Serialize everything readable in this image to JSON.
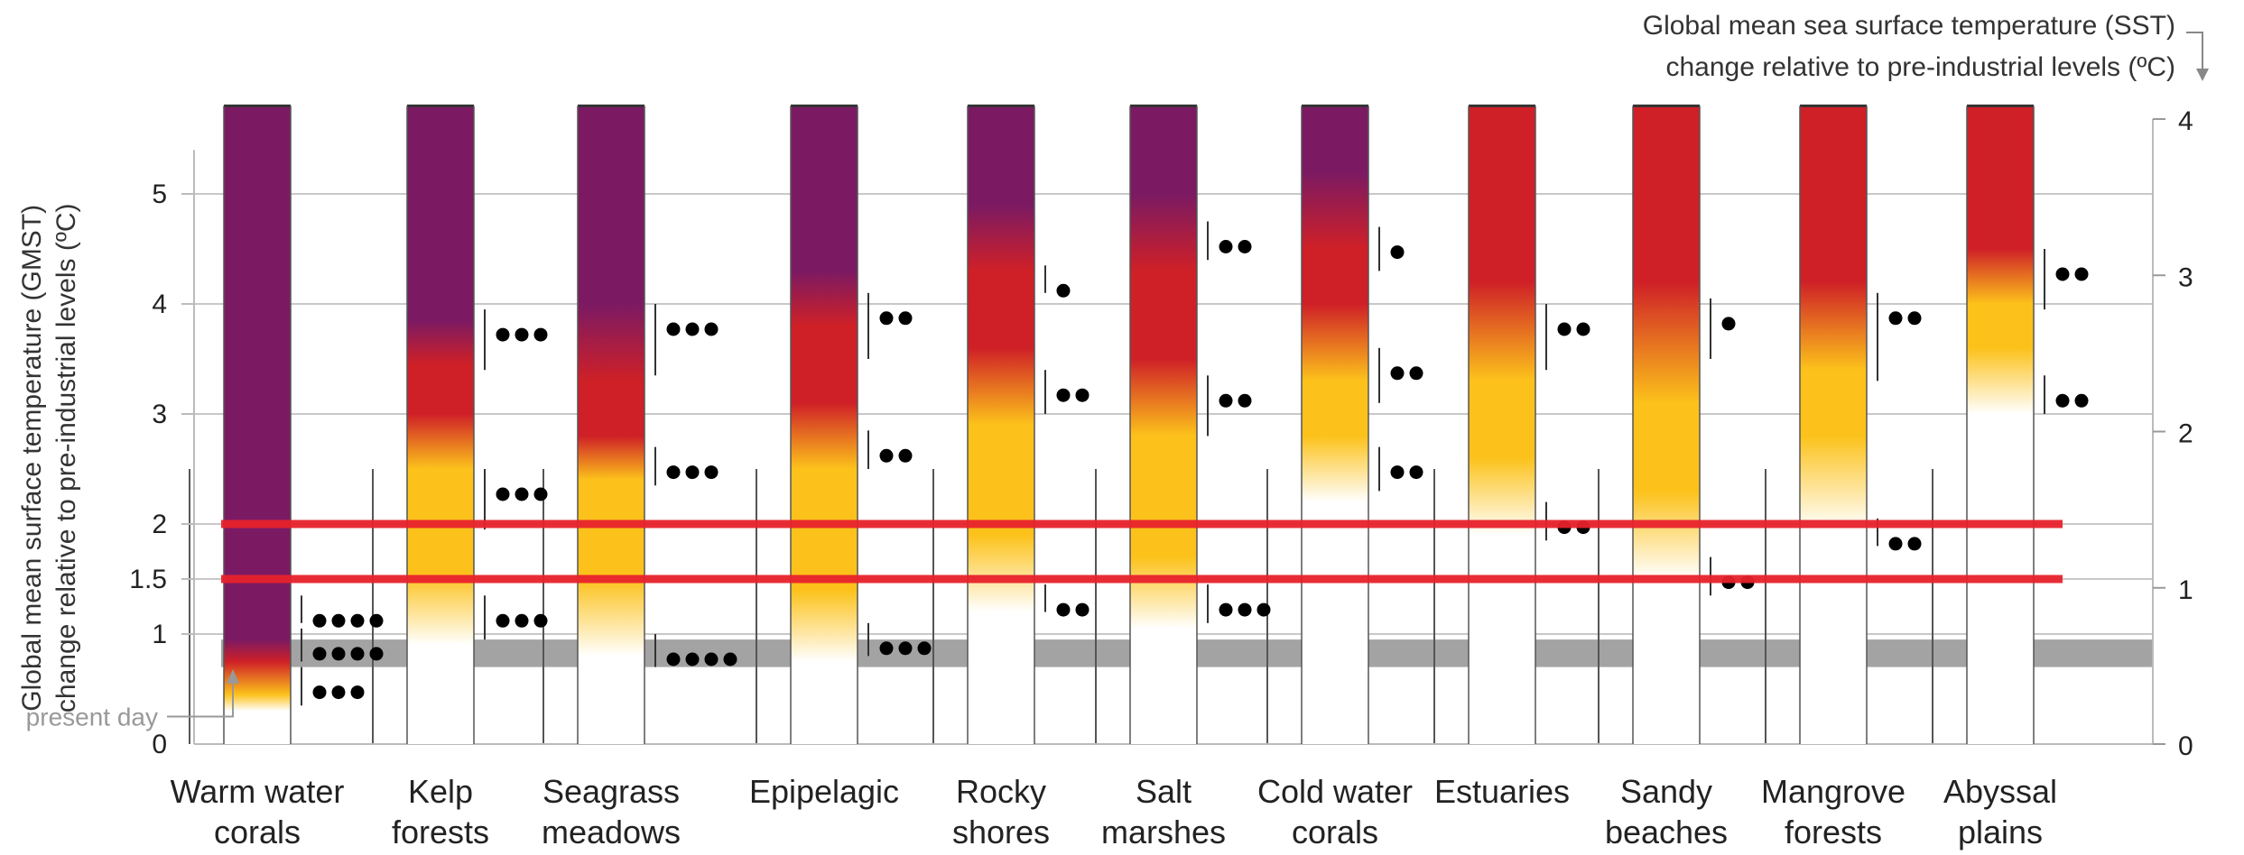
{
  "chart_data": {
    "type": "bar",
    "title": "",
    "categories": [
      [
        "Warm water",
        "corals"
      ],
      [
        "Kelp",
        "forests"
      ],
      [
        "Seagrass",
        "meadows"
      ],
      [
        "Epipelagic"
      ],
      [
        "Rocky",
        "shores"
      ],
      [
        "Salt",
        "marshes"
      ],
      [
        "Cold water",
        "corals"
      ],
      [
        "Estuaries"
      ],
      [
        "Sandy",
        "beaches"
      ],
      [
        "Mangrove",
        "forests"
      ],
      [
        "Abyssal",
        "plains"
      ]
    ],
    "ylabel_left": [
      "Global mean surface temperature (GMST)",
      "change relative to pre-industrial levels (ºC)"
    ],
    "ylabel_right": [
      "Global mean sea surface temperature (SST)",
      "change relative to pre-industrial levels (ºC)"
    ],
    "yticks_left": [
      0,
      1,
      1.5,
      2,
      3,
      4,
      5
    ],
    "yticks_right": [
      0,
      1,
      2,
      3,
      4
    ],
    "ylim_left": [
      0,
      5.8
    ],
    "ylim_right": [
      0,
      4
    ],
    "present_day_label": "present day",
    "present_day_band": [
      0.7,
      0.95
    ],
    "reference_lines_gmst": [
      1.5,
      2
    ],
    "risk_colors": {
      "undetectable": "#ffffff",
      "moderate": "#fcc21b",
      "high": "#cf2027",
      "very_high": "#7b1a63"
    },
    "bars": [
      {
        "gradient": [
          [
            0.3,
            "#ffffff"
          ],
          [
            0.45,
            "#fcc21b"
          ],
          [
            0.75,
            "#cf2027"
          ],
          [
            0.95,
            "#7b1a63"
          ],
          [
            5.8,
            "#7b1a63"
          ]
        ],
        "confidence": [
          {
            "from": 0.35,
            "to": 0.7,
            "dots": 3
          },
          {
            "from": 0.75,
            "to": 1.05,
            "dots": 4
          },
          {
            "from": 1.1,
            "to": 1.35,
            "dots": 4
          }
        ]
      },
      {
        "gradient": [
          [
            0.9,
            "#ffffff"
          ],
          [
            1.55,
            "#fcc21b"
          ],
          [
            2.5,
            "#fcc21b"
          ],
          [
            3.0,
            "#cf2027"
          ],
          [
            3.45,
            "#cf2027"
          ],
          [
            3.85,
            "#7b1a63"
          ],
          [
            5.8,
            "#7b1a63"
          ]
        ],
        "confidence": [
          {
            "from": 0.95,
            "to": 1.35,
            "dots": 3
          },
          {
            "from": 1.95,
            "to": 2.5,
            "dots": 3
          },
          {
            "from": 3.4,
            "to": 3.95,
            "dots": 3
          }
        ]
      },
      {
        "gradient": [
          [
            0.8,
            "#ffffff"
          ],
          [
            1.5,
            "#fcc21b"
          ],
          [
            2.4,
            "#fcc21b"
          ],
          [
            2.8,
            "#cf2027"
          ],
          [
            3.3,
            "#cf2027"
          ],
          [
            4.0,
            "#7b1a63"
          ],
          [
            5.8,
            "#7b1a63"
          ]
        ],
        "confidence": [
          {
            "from": 0.7,
            "to": 1.0,
            "dots": 4
          },
          {
            "from": 2.35,
            "to": 2.7,
            "dots": 3
          },
          {
            "from": 3.35,
            "to": 4.0,
            "dots": 3
          }
        ]
      },
      {
        "gradient": [
          [
            0.75,
            "#ffffff"
          ],
          [
            1.4,
            "#fcc21b"
          ],
          [
            2.5,
            "#fcc21b"
          ],
          [
            3.1,
            "#cf2027"
          ],
          [
            3.8,
            "#cf2027"
          ],
          [
            4.3,
            "#7b1a63"
          ],
          [
            5.8,
            "#7b1a63"
          ]
        ],
        "confidence": [
          {
            "from": 0.8,
            "to": 1.1,
            "dots": 3
          },
          {
            "from": 2.5,
            "to": 2.85,
            "dots": 2
          },
          {
            "from": 3.5,
            "to": 4.1,
            "dots": 2
          }
        ]
      },
      {
        "gradient": [
          [
            1.2,
            "#ffffff"
          ],
          [
            1.9,
            "#fcc21b"
          ],
          [
            2.9,
            "#fcc21b"
          ],
          [
            3.6,
            "#cf2027"
          ],
          [
            4.3,
            "#cf2027"
          ],
          [
            4.9,
            "#7b1a63"
          ],
          [
            5.8,
            "#7b1a63"
          ]
        ],
        "confidence": [
          {
            "from": 1.2,
            "to": 1.45,
            "dots": 2
          },
          {
            "from": 3.0,
            "to": 3.4,
            "dots": 2
          },
          {
            "from": 4.1,
            "to": 4.35,
            "dots": 1
          }
        ]
      },
      {
        "gradient": [
          [
            1.05,
            "#ffffff"
          ],
          [
            1.7,
            "#fcc21b"
          ],
          [
            2.8,
            "#fcc21b"
          ],
          [
            3.5,
            "#cf2027"
          ],
          [
            4.3,
            "#cf2027"
          ],
          [
            5.0,
            "#7b1a63"
          ],
          [
            5.8,
            "#7b1a63"
          ]
        ],
        "confidence": [
          {
            "from": 1.1,
            "to": 1.45,
            "dots": 3
          },
          {
            "from": 2.8,
            "to": 3.35,
            "dots": 2
          },
          {
            "from": 4.4,
            "to": 4.75,
            "dots": 2
          }
        ]
      },
      {
        "gradient": [
          [
            2.2,
            "#ffffff"
          ],
          [
            2.8,
            "#fcc21b"
          ],
          [
            3.3,
            "#fcc21b"
          ],
          [
            4.0,
            "#cf2027"
          ],
          [
            4.5,
            "#cf2027"
          ],
          [
            5.2,
            "#7b1a63"
          ],
          [
            5.8,
            "#7b1a63"
          ]
        ],
        "confidence": [
          {
            "from": 2.3,
            "to": 2.7,
            "dots": 2
          },
          {
            "from": 3.1,
            "to": 3.6,
            "dots": 2
          },
          {
            "from": 4.3,
            "to": 4.7,
            "dots": 1
          }
        ]
      },
      {
        "gradient": [
          [
            1.9,
            "#ffffff"
          ],
          [
            2.6,
            "#fcc21b"
          ],
          [
            3.3,
            "#fcc21b"
          ],
          [
            4.2,
            "#cf2027"
          ],
          [
            5.8,
            "#cf2027"
          ]
        ],
        "confidence": [
          {
            "from": 1.85,
            "to": 2.2,
            "dots": 2
          },
          {
            "from": 3.4,
            "to": 4.0,
            "dots": 2
          }
        ]
      },
      {
        "gradient": [
          [
            1.5,
            "#ffffff"
          ],
          [
            2.3,
            "#fcc21b"
          ],
          [
            3.1,
            "#fcc21b"
          ],
          [
            4.2,
            "#cf2027"
          ],
          [
            5.8,
            "#cf2027"
          ]
        ],
        "confidence": [
          {
            "from": 1.35,
            "to": 1.7,
            "dots": 2
          },
          {
            "from": 3.5,
            "to": 4.05,
            "dots": 1
          }
        ]
      },
      {
        "gradient": [
          [
            1.95,
            "#ffffff"
          ],
          [
            2.8,
            "#fcc21b"
          ],
          [
            3.4,
            "#fcc21b"
          ],
          [
            4.2,
            "#cf2027"
          ],
          [
            5.8,
            "#cf2027"
          ]
        ],
        "confidence": [
          {
            "from": 1.8,
            "to": 2.05,
            "dots": 2
          },
          {
            "from": 3.3,
            "to": 4.1,
            "dots": 2
          }
        ]
      },
      {
        "gradient": [
          [
            3.0,
            "#ffffff"
          ],
          [
            3.6,
            "#fcc21b"
          ],
          [
            4.0,
            "#fcc21b"
          ],
          [
            4.5,
            "#cf2027"
          ],
          [
            5.8,
            "#cf2027"
          ]
        ],
        "confidence": [
          {
            "from": 3.0,
            "to": 3.35,
            "dots": 2
          },
          {
            "from": 3.95,
            "to": 4.5,
            "dots": 2
          }
        ]
      }
    ]
  }
}
